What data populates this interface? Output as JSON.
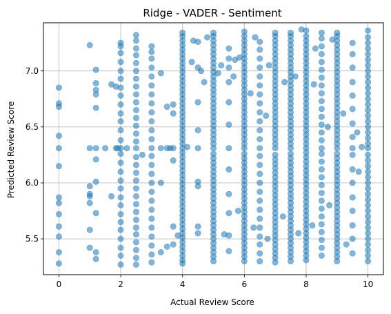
{
  "chart_data": {
    "type": "scatter",
    "title": "Ridge - VADER - Sentiment",
    "xlabel": "Actual Review Score",
    "ylabel": "Predicted Review Score",
    "xlim": [
      -0.5,
      10.5
    ],
    "ylim": [
      5.18,
      7.43
    ],
    "xticks": [
      0,
      2,
      4,
      6,
      8,
      10
    ],
    "xtick_labels": [
      "0",
      "2",
      "4",
      "6",
      "8",
      "10"
    ],
    "yticks": [
      5.5,
      6.0,
      6.5,
      7.0
    ],
    "ytick_labels": [
      "5.5",
      "6.0",
      "6.5",
      "7.0"
    ],
    "grid": true,
    "colors": {
      "point": "#1f77b4",
      "grid": "#b0b0b0",
      "axes": "#000000"
    },
    "point_alpha": 0.55,
    "baseline_y": 6.31,
    "columns": [
      {
        "x": 0,
        "y": [
          5.28,
          5.38,
          5.52,
          5.61,
          5.72,
          5.82,
          5.87,
          6.15,
          6.31,
          6.42,
          6.68,
          6.71,
          6.85
        ]
      },
      {
        "x": 1,
        "y": [
          5.42,
          5.58,
          5.82,
          5.88,
          5.9,
          5.97,
          6.31,
          7.23
        ]
      },
      {
        "x": 1.2,
        "y": [
          5.32,
          5.38,
          5.73,
          6.01,
          6.21,
          6.31,
          6.67,
          6.79,
          6.83,
          6.89,
          7.01
        ]
      },
      {
        "x": 1.5,
        "y": [
          6.31
        ]
      },
      {
        "x": 1.7,
        "y": [
          5.88,
          6.88
        ]
      },
      {
        "x": 1.85,
        "y": [
          6.31,
          6.86
        ]
      },
      {
        "x": 2,
        "y": [
          5.27,
          5.35,
          5.42,
          5.5,
          5.58,
          5.65,
          5.72,
          5.8,
          5.87,
          5.95,
          6.02,
          6.1,
          6.18,
          6.26,
          6.31,
          6.38,
          6.47,
          6.55,
          6.62,
          6.7,
          6.78,
          6.85,
          6.93,
          7.0,
          7.08,
          7.16,
          7.22,
          7.25
        ]
      },
      {
        "x": 2.5,
        "y": [
          5.27,
          5.33,
          5.4,
          5.47,
          5.54,
          5.6,
          5.67,
          5.74,
          5.81,
          5.88,
          5.95,
          6.02,
          6.09,
          6.16,
          6.23,
          6.31,
          6.37,
          6.44,
          6.51,
          6.58,
          6.65,
          6.72,
          6.79,
          6.86,
          6.93,
          7.0,
          7.07,
          7.14,
          7.2,
          7.27,
          7.32
        ]
      },
      {
        "x": 3,
        "y": [
          5.29,
          5.36,
          5.44,
          5.52,
          5.6,
          5.68,
          5.76,
          5.84,
          5.92,
          6.0,
          6.08,
          6.16,
          6.24,
          6.31,
          6.39,
          6.47,
          6.55,
          6.63,
          6.71,
          6.79,
          6.87,
          6.95,
          7.03,
          7.11,
          7.17,
          7.22
        ]
      },
      {
        "x": 3.3,
        "y": [
          5.38,
          6.0,
          6.31,
          6.98
        ]
      },
      {
        "x": 3.5,
        "y": [
          5.43,
          6.31,
          6.68
        ]
      },
      {
        "x": 3.7,
        "y": [
          5.45,
          5.61,
          6.2,
          6.31,
          6.62,
          6.7
        ]
      },
      {
        "x": 4,
        "y": [
          5.28,
          5.31,
          5.35,
          5.39,
          5.43,
          5.47,
          5.51,
          5.55,
          5.59,
          5.63,
          5.67,
          5.71,
          5.75,
          5.79,
          5.83,
          5.87,
          5.91,
          5.95,
          5.99,
          6.03,
          6.07,
          6.11,
          6.15,
          6.19,
          6.23,
          6.27,
          6.31,
          6.35,
          6.39,
          6.43,
          6.47,
          6.51,
          6.55,
          6.59,
          6.63,
          6.67,
          6.71,
          6.75,
          6.79,
          6.83,
          6.87,
          6.91,
          6.95,
          6.99,
          7.03,
          7.07,
          7.11,
          7.15,
          7.19,
          7.23,
          7.27,
          7.31,
          7.34
        ]
      },
      {
        "x": 4.5,
        "y": [
          5.55,
          5.61,
          5.97,
          6.01,
          6.31,
          6.47,
          6.72,
          7.03,
          7.26
        ]
      },
      {
        "x": 5,
        "y": [
          5.3,
          5.34,
          5.38,
          5.42,
          5.46,
          5.5,
          5.54,
          5.58,
          5.62,
          5.66,
          5.7,
          5.74,
          5.78,
          5.82,
          5.86,
          5.9,
          5.94,
          5.98,
          6.02,
          6.06,
          6.1,
          6.14,
          6.18,
          6.22,
          6.26,
          6.31,
          6.35,
          6.39,
          6.43,
          6.47,
          6.51,
          6.55,
          6.59,
          6.63,
          6.67,
          6.71,
          6.75,
          6.79,
          6.83,
          6.87,
          6.91,
          6.95,
          6.99,
          7.03,
          7.07,
          7.11,
          7.15,
          7.19,
          7.23,
          7.27,
          7.31,
          7.34
        ]
      },
      {
        "x": 5.5,
        "y": [
          5.39,
          5.53,
          5.73,
          5.9,
          6.12,
          6.31,
          6.52,
          6.72,
          6.9,
          7.03,
          7.11,
          7.2
        ]
      },
      {
        "x": 6,
        "y": [
          5.3,
          5.34,
          5.38,
          5.42,
          5.46,
          5.5,
          5.54,
          5.58,
          5.62,
          5.66,
          5.7,
          5.74,
          5.78,
          5.82,
          5.86,
          5.9,
          5.94,
          5.98,
          6.02,
          6.06,
          6.1,
          6.14,
          6.18,
          6.22,
          6.26,
          6.31,
          6.35,
          6.39,
          6.43,
          6.47,
          6.51,
          6.55,
          6.59,
          6.63,
          6.67,
          6.71,
          6.75,
          6.79,
          6.83,
          6.87,
          6.91,
          6.95,
          6.99,
          7.03,
          7.07,
          7.11,
          7.15,
          7.19,
          7.23,
          7.27,
          7.31,
          7.35
        ]
      },
      {
        "x": 6.5,
        "y": [
          5.3,
          5.37,
          5.45,
          5.52,
          5.6,
          5.68,
          5.76,
          5.84,
          5.92,
          6.0,
          6.08,
          6.16,
          6.24,
          6.31,
          6.39,
          6.47,
          6.55,
          6.63,
          6.71,
          6.79,
          6.87,
          6.95,
          7.03,
          7.11,
          7.19,
          7.26
        ]
      },
      {
        "x": 7,
        "y": [
          5.29,
          5.33,
          5.37,
          5.41,
          5.45,
          5.49,
          5.53,
          5.57,
          5.61,
          5.65,
          5.69,
          5.73,
          5.77,
          5.81,
          5.85,
          5.89,
          5.93,
          5.97,
          6.01,
          6.05,
          6.09,
          6.13,
          6.17,
          6.21,
          6.25,
          6.31,
          6.35,
          6.39,
          6.43,
          6.47,
          6.51,
          6.55,
          6.59,
          6.63,
          6.67,
          6.71,
          6.75,
          6.79,
          6.83,
          6.87,
          6.91,
          6.95,
          6.99,
          7.03,
          7.07,
          7.11,
          7.15,
          7.19,
          7.23,
          7.27,
          7.31,
          7.34
        ]
      },
      {
        "x": 7.5,
        "y": [
          5.3,
          5.34,
          5.38,
          5.42,
          5.46,
          5.5,
          5.54,
          5.58,
          5.62,
          5.66,
          5.7,
          5.74,
          5.78,
          5.82,
          5.86,
          5.9,
          5.94,
          5.98,
          6.02,
          6.06,
          6.1,
          6.14,
          6.18,
          6.22,
          6.26,
          6.31,
          6.35,
          6.39,
          6.43,
          6.47,
          6.51,
          6.55,
          6.59,
          6.63,
          6.67,
          6.71,
          6.75,
          6.79,
          6.83,
          6.87,
          6.91,
          6.95,
          6.99,
          7.03,
          7.07,
          7.11,
          7.15,
          7.19,
          7.23,
          7.27,
          7.31,
          7.34
        ]
      },
      {
        "x": 8,
        "y": [
          5.31,
          5.35,
          5.39,
          5.43,
          5.47,
          5.51,
          5.55,
          5.59,
          5.63,
          5.67,
          5.71,
          5.75,
          5.79,
          5.83,
          5.87,
          5.91,
          5.95,
          5.99,
          6.03,
          6.07,
          6.11,
          6.15,
          6.19,
          6.23,
          6.27,
          6.31,
          6.35,
          6.39,
          6.43,
          6.47,
          6.51,
          6.55,
          6.59,
          6.63,
          6.67,
          6.71,
          6.75,
          6.79,
          6.83,
          6.87,
          6.91,
          6.95,
          6.99,
          7.03,
          7.07,
          7.11,
          7.15,
          7.19,
          7.23,
          7.27,
          7.31,
          7.36
        ]
      },
      {
        "x": 8.5,
        "y": [
          5.35,
          5.42,
          5.49,
          5.56,
          5.63,
          5.7,
          5.77,
          5.84,
          5.91,
          5.98,
          6.05,
          6.12,
          6.19,
          6.26,
          6.31,
          6.38,
          6.45,
          6.52,
          6.59,
          6.66,
          6.73,
          6.8,
          6.87,
          6.94,
          7.01,
          7.08,
          7.15,
          7.22,
          7.29,
          7.34
        ]
      },
      {
        "x": 9,
        "y": [
          5.3,
          5.34,
          5.38,
          5.42,
          5.46,
          5.5,
          5.54,
          5.58,
          5.62,
          5.66,
          5.7,
          5.74,
          5.78,
          5.82,
          5.86,
          5.9,
          5.94,
          5.98,
          6.02,
          6.06,
          6.1,
          6.14,
          6.18,
          6.22,
          6.26,
          6.31,
          6.35,
          6.39,
          6.43,
          6.47,
          6.51,
          6.55,
          6.59,
          6.63,
          6.67,
          6.71,
          6.75,
          6.79,
          6.83,
          6.87,
          6.91,
          6.95,
          6.99,
          7.03,
          7.07,
          7.11,
          7.15,
          7.19,
          7.23,
          7.27,
          7.31,
          7.34
        ]
      },
      {
        "x": 9.5,
        "y": [
          5.37,
          5.5,
          5.62,
          5.75,
          5.87,
          6.0,
          6.12,
          6.25,
          6.31,
          6.41,
          6.53,
          6.66,
          6.78,
          6.9,
          7.03,
          7.15,
          7.25
        ]
      },
      {
        "x": 10,
        "y": [
          5.3,
          5.35,
          5.4,
          5.45,
          5.5,
          5.55,
          5.6,
          5.65,
          5.7,
          5.75,
          5.8,
          5.85,
          5.9,
          5.95,
          6.0,
          6.05,
          6.1,
          6.15,
          6.2,
          6.25,
          6.31,
          6.35,
          6.4,
          6.45,
          6.5,
          6.55,
          6.6,
          6.65,
          6.7,
          6.75,
          6.8,
          6.85,
          6.9,
          6.95,
          7.0,
          7.05,
          7.1,
          7.15,
          7.2,
          7.25,
          7.3,
          7.36
        ]
      }
    ],
    "extra_points": [
      [
        4.15,
        6.32
      ],
      [
        4.3,
        7.08
      ],
      [
        4.35,
        7.27
      ],
      [
        4.6,
        7.0
      ],
      [
        4.7,
        6.9
      ],
      [
        4.8,
        7.3
      ],
      [
        5.15,
        6.98
      ],
      [
        5.25,
        7.05
      ],
      [
        5.35,
        5.54
      ],
      [
        5.65,
        6.95
      ],
      [
        5.7,
        7.1
      ],
      [
        5.8,
        5.75
      ],
      [
        5.85,
        7.12
      ],
      [
        6.2,
        6.8
      ],
      [
        6.3,
        5.6
      ],
      [
        6.35,
        7.3
      ],
      [
        6.7,
        6.6
      ],
      [
        6.75,
        5.5
      ],
      [
        6.8,
        7.05
      ],
      [
        7.25,
        5.7
      ],
      [
        7.3,
        6.9
      ],
      [
        7.65,
        6.95
      ],
      [
        7.75,
        5.55
      ],
      [
        7.85,
        7.37
      ],
      [
        8.2,
        5.62
      ],
      [
        8.25,
        6.88
      ],
      [
        8.3,
        7.2
      ],
      [
        8.7,
        6.5
      ],
      [
        8.75,
        5.8
      ],
      [
        8.85,
        7.28
      ],
      [
        9.2,
        6.62
      ],
      [
        9.3,
        5.45
      ],
      [
        9.65,
        6.45
      ],
      [
        9.7,
        6.1
      ],
      [
        9.8,
        6.32
      ],
      [
        2.7,
        6.25
      ],
      [
        3.6,
        6.31
      ],
      [
        3.85,
        5.53
      ],
      [
        1.9,
        6.31
      ],
      [
        2.2,
        6.31
      ]
    ]
  }
}
